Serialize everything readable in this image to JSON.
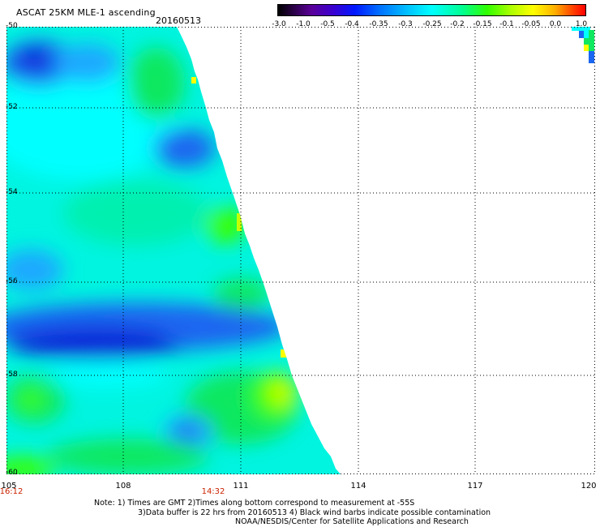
{
  "header": {
    "title": "ASCAT 25KM MLE-1 ascending",
    "date": "20160513"
  },
  "colorbar": {
    "labels": [
      "-3.0",
      "-1.0",
      "-0.5",
      "-0.4",
      "-0.35",
      "-0.3",
      "-0.25",
      "-0.2",
      "-0.15",
      "-0.1",
      "-0.05",
      "0.0",
      "1.0"
    ],
    "colors": [
      "#000000",
      "#5a009a",
      "#0018ff",
      "#00c0ff",
      "#00ffff",
      "#30ff00",
      "#ffff00",
      "#ff0000"
    ]
  },
  "map": {
    "lat_labels": [
      "-50",
      "-52",
      "-54",
      "-56",
      "-58",
      "-60"
    ],
    "lon_labels": [
      "105",
      "108",
      "111",
      "114",
      "117",
      "120"
    ],
    "time_labels": [
      "16:12",
      "14:32"
    ],
    "colors": {
      "deep_blue": "#0a2cd8",
      "blue": "#1a66f0",
      "light_blue": "#1aa8ff",
      "cyan": "#00ffff",
      "aqua_green": "#00f0b0",
      "green": "#10e860",
      "bright_green": "#38ff00",
      "yellow_green": "#c8ff00",
      "yellow": "#ffff00"
    }
  },
  "notes": {
    "line1": "Note: 1) Times are GMT 2)Times along bottom correspond to measurement at -55S",
    "line2": "3)Data buffer is 22 hrs from 20160513 4) Black wind barbs indicate possible contamination",
    "line3": "NOAA/NESDIS/Center for Satellite Applications and Research"
  }
}
